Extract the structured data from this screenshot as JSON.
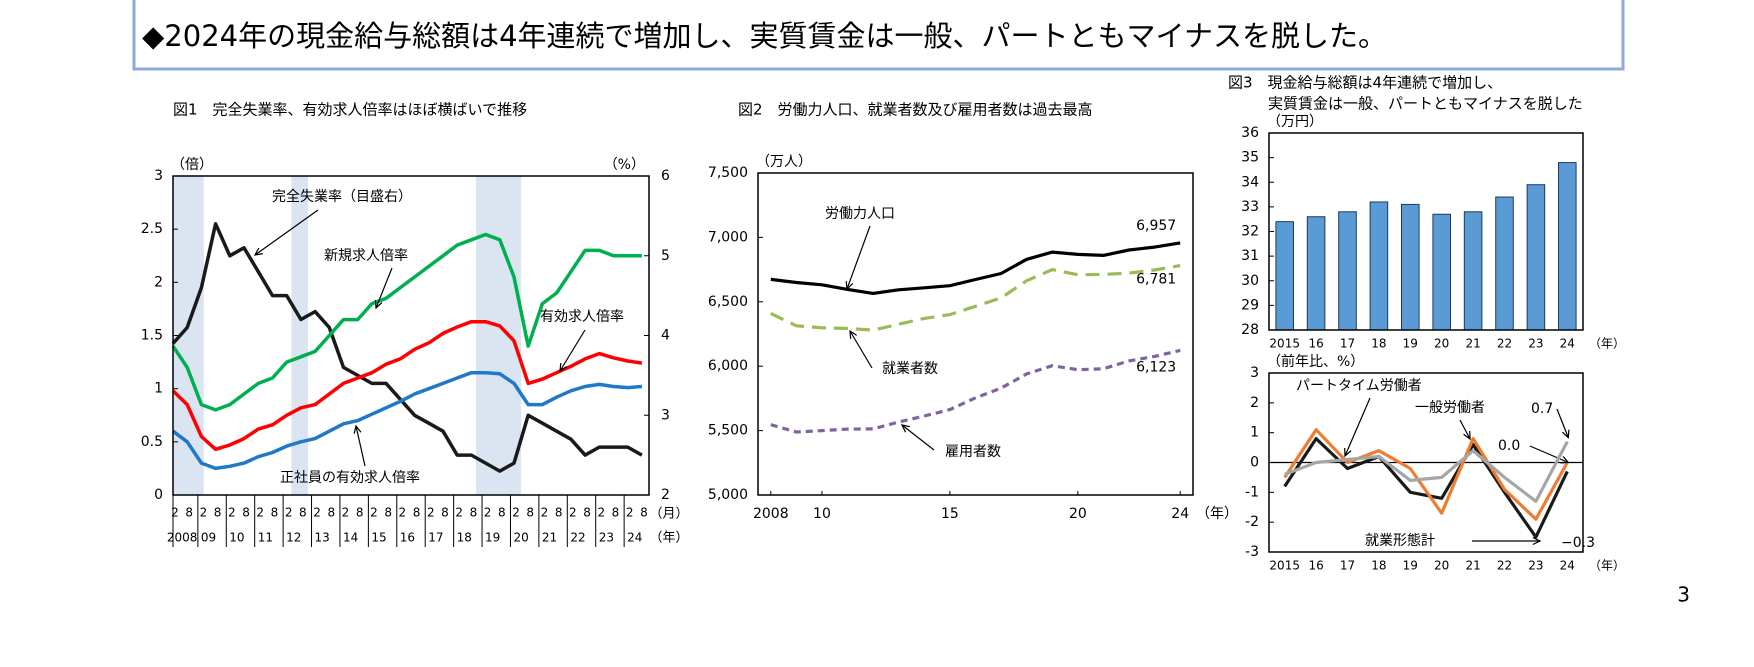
{
  "header": {
    "text": "◆2024年の現金給与総額は4年連続で増加し、実質賃金は一般、パートともマイナスを脱した。"
  },
  "page_number": "3",
  "chart_data": [
    {
      "type": "line",
      "title": "図1　完全失業率、有効求人倍率はほぼ横ばいで推移",
      "y_label": "（倍）",
      "y2_label": "（%）",
      "x_unit_month": "（月）",
      "x_unit_year": "（年）",
      "x": [
        "2008-02",
        "2008-08",
        "2009-02",
        "2009-08",
        "2010-02",
        "2010-08",
        "2011-02",
        "2011-08",
        "2012-02",
        "2012-08",
        "2013-02",
        "2013-08",
        "2014-02",
        "2014-08",
        "2015-02",
        "2015-08",
        "2016-02",
        "2016-08",
        "2017-02",
        "2017-08",
        "2018-02",
        "2018-08",
        "2019-02",
        "2019-08",
        "2020-02",
        "2020-08",
        "2021-02",
        "2021-08",
        "2022-02",
        "2022-08",
        "2023-02",
        "2023-08",
        "2024-02",
        "2024-08"
      ],
      "x_month_labels": [
        "2",
        "8"
      ],
      "x_year_labels": [
        "2008",
        "09",
        "10",
        "11",
        "12",
        "13",
        "14",
        "15",
        "16",
        "17",
        "18",
        "19",
        "20",
        "21",
        "22",
        "23",
        "24"
      ],
      "shaded_periods": [
        [
          "2008-02",
          "2009-03"
        ],
        [
          "2012-04",
          "2012-11"
        ],
        [
          "2018-10",
          "2020-05"
        ]
      ],
      "shade_color": "#dbe4f1",
      "ylim": [
        0,
        3
      ],
      "yticks": [
        0,
        0.5,
        1,
        1.5,
        2,
        2.5,
        3
      ],
      "y2lim": [
        2,
        6
      ],
      "y2ticks": [
        2,
        3,
        4,
        5,
        6
      ],
      "series": [
        {
          "name": "完全失業率（目盛右）",
          "color": "#1a1a1a",
          "axis": "y2",
          "values": [
            3.9,
            4.1,
            4.6,
            5.4,
            5.0,
            5.1,
            4.8,
            4.5,
            4.5,
            4.2,
            4.3,
            4.1,
            3.6,
            3.5,
            3.4,
            3.4,
            3.2,
            3.0,
            2.9,
            2.8,
            2.5,
            2.5,
            2.4,
            2.3,
            2.4,
            3.0,
            2.9,
            2.8,
            2.7,
            2.5,
            2.6,
            2.6,
            2.6,
            2.5
          ]
        },
        {
          "name": "新規求人倍率",
          "color": "#00b050",
          "values": [
            1.4,
            1.2,
            0.85,
            0.8,
            0.85,
            0.95,
            1.05,
            1.1,
            1.25,
            1.3,
            1.35,
            1.5,
            1.65,
            1.65,
            1.8,
            1.85,
            1.95,
            2.05,
            2.15,
            2.25,
            2.35,
            2.4,
            2.45,
            2.4,
            2.05,
            1.4,
            1.8,
            1.9,
            2.1,
            2.3,
            2.3,
            2.25,
            2.25,
            2.25
          ]
        },
        {
          "name": "有効求人倍率",
          "color": "#ff0000",
          "values": [
            0.98,
            0.85,
            0.55,
            0.43,
            0.47,
            0.53,
            0.62,
            0.66,
            0.75,
            0.82,
            0.85,
            0.95,
            1.05,
            1.1,
            1.15,
            1.23,
            1.28,
            1.37,
            1.43,
            1.52,
            1.58,
            1.63,
            1.63,
            1.59,
            1.45,
            1.05,
            1.09,
            1.15,
            1.21,
            1.28,
            1.33,
            1.29,
            1.26,
            1.24
          ]
        },
        {
          "name": "正社員の有効求人倍率",
          "color": "#1f78c8",
          "values": [
            0.6,
            0.5,
            0.3,
            0.25,
            0.27,
            0.3,
            0.36,
            0.4,
            0.46,
            0.5,
            0.53,
            0.6,
            0.67,
            0.7,
            0.76,
            0.82,
            0.88,
            0.95,
            1.0,
            1.05,
            1.1,
            1.15,
            1.15,
            1.14,
            1.05,
            0.85,
            0.85,
            0.92,
            0.98,
            1.02,
            1.04,
            1.02,
            1.01,
            1.02
          ]
        }
      ]
    },
    {
      "type": "line",
      "title": "図2　労働力人口、就業者数及び雇用者数は過去最高",
      "y_label": "（万人）",
      "x_unit": "（年）",
      "x": [
        2008,
        2009,
        2010,
        2011,
        2012,
        2013,
        2014,
        2015,
        2016,
        2017,
        2018,
        2019,
        2020,
        2021,
        2022,
        2023,
        2024
      ],
      "xlim": [
        2007.5,
        2024.5
      ],
      "xticks": [
        2008,
        {
          "value": 2010,
          "label": "10"
        },
        {
          "value": 2015,
          "label": "15"
        },
        {
          "value": 2020,
          "label": "20"
        },
        {
          "value": 2024,
          "label": "24"
        }
      ],
      "ylim": [
        5000,
        7500
      ],
      "yticks": [
        {
          "value": 5000,
          "label": "5,000"
        },
        {
          "value": 5500,
          "label": "5,500"
        },
        {
          "value": 6000,
          "label": "6,000"
        },
        {
          "value": 6500,
          "label": "6,500"
        },
        {
          "value": 7000,
          "label": "7,000"
        },
        {
          "value": 7500,
          "label": "7,500"
        }
      ],
      "series": [
        {
          "name": "労働力人口",
          "color": "#000000",
          "dash": "solid",
          "values": [
            6674,
            6650,
            6632,
            6596,
            6565,
            6593,
            6609,
            6625,
            6673,
            6720,
            6830,
            6886,
            6868,
            6860,
            6902,
            6925,
            6957
          ],
          "value_labels": [
            null,
            null,
            null,
            null,
            null,
            null,
            null,
            null,
            null,
            null,
            null,
            null,
            null,
            null,
            null,
            null,
            "6,957"
          ]
        },
        {
          "name": "就業者数",
          "color": "#9bbb59",
          "dash": "dashed",
          "values": [
            6409,
            6314,
            6298,
            6293,
            6280,
            6326,
            6371,
            6401,
            6465,
            6530,
            6664,
            6750,
            6710,
            6713,
            6723,
            6747,
            6781
          ],
          "value_labels": [
            null,
            null,
            null,
            null,
            null,
            null,
            null,
            null,
            null,
            null,
            null,
            null,
            null,
            null,
            null,
            null,
            "6,781"
          ]
        },
        {
          "name": "雇用者数",
          "color": "#8064a2",
          "dash": "dotted",
          "values": [
            5546,
            5489,
            5500,
            5512,
            5513,
            5567,
            5613,
            5663,
            5755,
            5830,
            5940,
            6004,
            5973,
            5980,
            6041,
            6076,
            6123
          ],
          "value_labels": [
            null,
            null,
            null,
            null,
            null,
            null,
            null,
            null,
            null,
            null,
            null,
            null,
            null,
            null,
            null,
            null,
            "6,123"
          ]
        }
      ]
    },
    {
      "type": "bar",
      "title": "図3　現金給与総額は4年連続で増加し、",
      "subtitle": "実質賃金は一般、パートともマイナスを脱した",
      "y_label": "（万円）",
      "x_unit": "（年）",
      "categories": [
        "2015",
        "16",
        "17",
        "18",
        "19",
        "20",
        "21",
        "22",
        "23",
        "24"
      ],
      "values": [
        32.4,
        32.6,
        32.8,
        33.2,
        33.1,
        32.7,
        32.8,
        33.4,
        33.9,
        34.8
      ],
      "color": "#5b9bd5",
      "ylim": [
        28,
        36
      ],
      "yticks": [
        28,
        29,
        30,
        31,
        32,
        33,
        34,
        35,
        36
      ]
    },
    {
      "type": "line",
      "y_label": "（前年比、%）",
      "x_unit": "（年）",
      "categories": [
        "2015",
        "16",
        "17",
        "18",
        "19",
        "20",
        "21",
        "22",
        "23",
        "24"
      ],
      "ylim": [
        -3,
        3
      ],
      "yticks": [
        -3,
        -2,
        -1,
        0,
        1,
        2,
        3
      ],
      "series": [
        {
          "name": "就業形態計",
          "color": "#1a1a1a",
          "dash": "solid",
          "values": [
            -0.8,
            0.8,
            -0.2,
            0.2,
            -1.0,
            -1.2,
            0.6,
            -1.0,
            -2.5,
            -0.3
          ],
          "value_labels": [
            null,
            null,
            null,
            null,
            null,
            null,
            null,
            null,
            null,
            "−0.3"
          ]
        },
        {
          "name": "一般労働者",
          "color": "#ed7d31",
          "dash": "solid",
          "values": [
            -0.5,
            1.1,
            0.0,
            0.4,
            -0.2,
            -1.7,
            0.8,
            -0.9,
            -1.9,
            0.0
          ],
          "value_labels": [
            null,
            null,
            null,
            null,
            null,
            null,
            null,
            null,
            null,
            "0.0"
          ]
        },
        {
          "name": "パートタイム労働者",
          "color": "#a6a6a6",
          "dash": "solid",
          "values": [
            -0.4,
            0.0,
            0.1,
            0.2,
            -0.6,
            -0.5,
            0.4,
            -0.5,
            -1.3,
            0.7
          ],
          "value_labels": [
            null,
            null,
            null,
            null,
            null,
            null,
            null,
            null,
            null,
            "0.7"
          ]
        }
      ]
    }
  ]
}
